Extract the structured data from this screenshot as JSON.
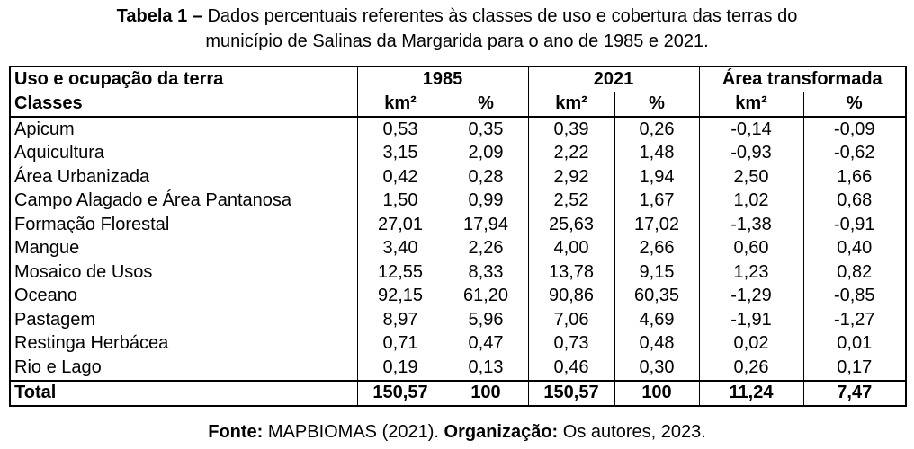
{
  "caption": {
    "label": "Tabela 1 –",
    "line1": "Dados percentuais referentes às classes de uso e cobertura das terras do",
    "line2": "município de Salinas da Margarida para o ano de 1985 e 2021."
  },
  "table": {
    "header_row1": [
      "Uso e ocupação da terra",
      "1985",
      "2021",
      "Área transformada"
    ],
    "header_row2": [
      "Classes",
      "km²",
      "%",
      "km²",
      "%",
      "km²",
      "%"
    ],
    "rows": [
      [
        "Apicum",
        "0,53",
        "0,35",
        "0,39",
        "0,26",
        "-0,14",
        "-0,09"
      ],
      [
        "Aquicultura",
        "3,15",
        "2,09",
        "2,22",
        "1,48",
        "-0,93",
        "-0,62"
      ],
      [
        "Área Urbanizada",
        "0,42",
        "0,28",
        "2,92",
        "1,94",
        "2,50",
        "1,66"
      ],
      [
        "Campo Alagado e Área Pantanosa",
        "1,50",
        "0,99",
        "2,52",
        "1,67",
        "1,02",
        "0,68"
      ],
      [
        "Formação Florestal",
        "27,01",
        "17,94",
        "25,63",
        "17,02",
        "-1,38",
        "-0,91"
      ],
      [
        "Mangue",
        "3,40",
        "2,26",
        "4,00",
        "2,66",
        "0,60",
        "0,40"
      ],
      [
        "Mosaico de Usos",
        "12,55",
        "8,33",
        "13,78",
        "9,15",
        "1,23",
        "0,82"
      ],
      [
        "Oceano",
        "92,15",
        "61,20",
        "90,86",
        "60,35",
        "-1,29",
        "-0,85"
      ],
      [
        "Pastagem",
        "8,97",
        "5,96",
        "7,06",
        "4,69",
        "-1,91",
        "-1,27"
      ],
      [
        "Restinga Herbácea",
        "0,71",
        "0,47",
        "0,73",
        "0,48",
        "0,02",
        "0,01"
      ],
      [
        "Rio e Lago",
        "0,19",
        "0,13",
        "0,46",
        "0,30",
        "0,26",
        "0,17"
      ]
    ],
    "total": [
      "Total",
      "150,57",
      "100",
      "150,57",
      "100",
      "11,24",
      "7,47"
    ]
  },
  "source": {
    "label1": "Fonte:",
    "text1": "MAPBIOMAS  (2021).",
    "label2": "Organização:",
    "text2": "Os autores, 2023."
  }
}
